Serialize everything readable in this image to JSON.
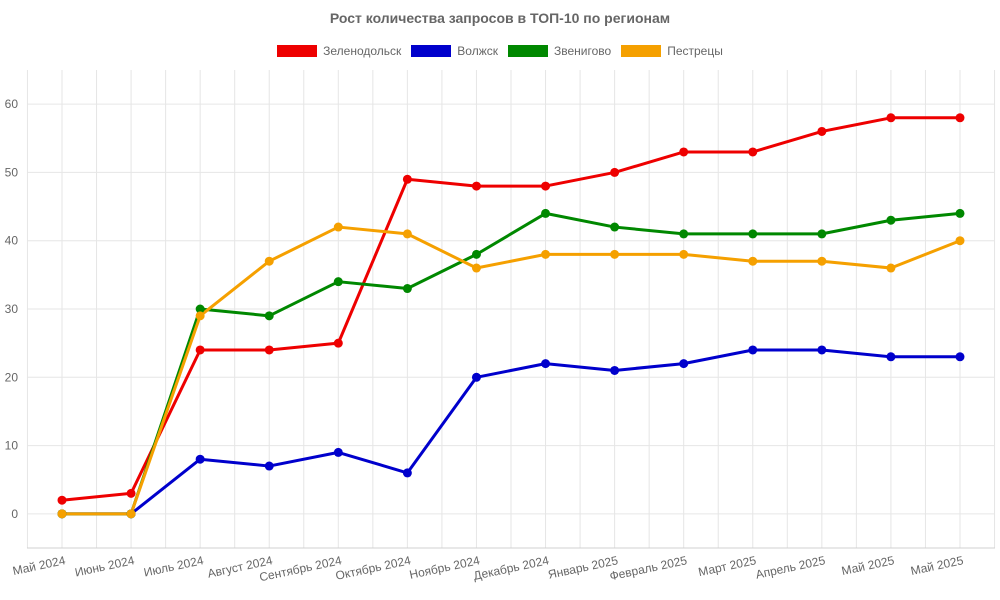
{
  "chart_data": {
    "type": "line",
    "title": "Рост количества запросов в ТОП-10 по регионам",
    "categories": [
      "Май 2024",
      "Июнь 2024",
      "Июль 2024",
      "Август 2024",
      "Сентябрь 2024",
      "Октябрь 2024",
      "Ноябрь 2024",
      "Декабрь 2024",
      "Январь 2025",
      "Февраль 2025",
      "Март 2025",
      "Апрель 2025",
      "Май 2025",
      "Май 2025"
    ],
    "ylim": [
      -5,
      65
    ],
    "yticks": [
      "0",
      "10",
      "20",
      "30",
      "40",
      "50",
      "60"
    ],
    "grid": true,
    "legend_position": "top",
    "series": [
      {
        "name": "Зеленодольск",
        "color": "#ee0000",
        "values": [
          2,
          3,
          24,
          24,
          25,
          49,
          48,
          48,
          50,
          53,
          53,
          56,
          58,
          58
        ]
      },
      {
        "name": "Волжск",
        "color": "#0000cc",
        "values": [
          0,
          0,
          8,
          7,
          9,
          6,
          20,
          22,
          21,
          22,
          24,
          24,
          23,
          23
        ]
      },
      {
        "name": "Звенигово",
        "color": "#008800",
        "values": [
          0,
          0,
          30,
          29,
          34,
          33,
          38,
          44,
          42,
          41,
          41,
          41,
          43,
          44
        ]
      },
      {
        "name": "Пестрецы",
        "color": "#f5a000",
        "values": [
          0,
          0,
          29,
          37,
          42,
          41,
          36,
          38,
          38,
          38,
          37,
          37,
          36,
          40
        ]
      }
    ]
  }
}
